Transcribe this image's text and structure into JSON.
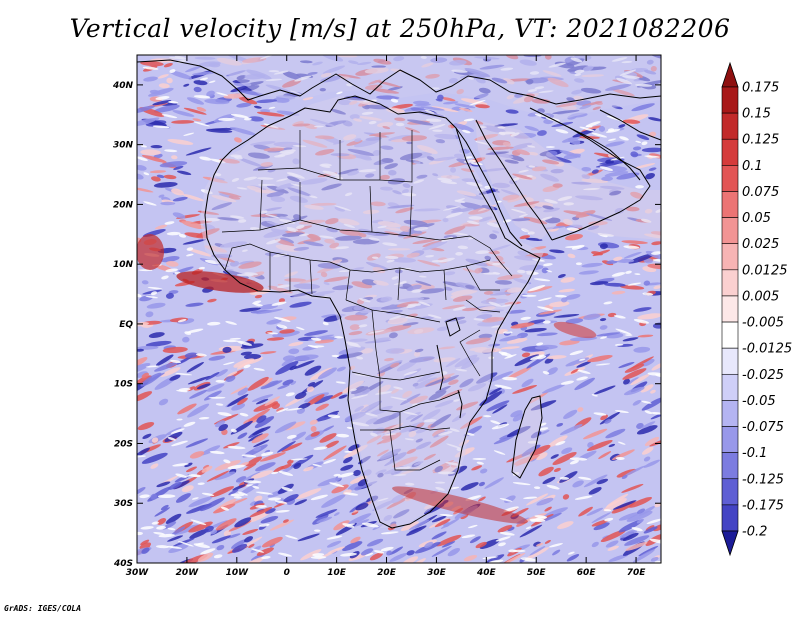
{
  "title": "Vertical velocity [m/s] at 250hPa, VT: 2021082206",
  "credit": "GrADS: IGES/COLA",
  "map": {
    "lon_range": [
      -30,
      75
    ],
    "lat_range": [
      -40,
      45
    ],
    "x_ticks": [
      {
        "value": -30,
        "label": "30W"
      },
      {
        "value": -20,
        "label": "20W"
      },
      {
        "value": -10,
        "label": "10W"
      },
      {
        "value": 0,
        "label": "0"
      },
      {
        "value": 10,
        "label": "10E"
      },
      {
        "value": 20,
        "label": "20E"
      },
      {
        "value": 30,
        "label": "30E"
      },
      {
        "value": 40,
        "label": "40E"
      },
      {
        "value": 50,
        "label": "50E"
      },
      {
        "value": 60,
        "label": "60E"
      },
      {
        "value": 70,
        "label": "70E"
      }
    ],
    "y_ticks": [
      {
        "value": 40,
        "label": "40N"
      },
      {
        "value": 30,
        "label": "30N"
      },
      {
        "value": 20,
        "label": "20N"
      },
      {
        "value": 10,
        "label": "10N"
      },
      {
        "value": 0,
        "label": "EQ"
      },
      {
        "value": -10,
        "label": "10S"
      },
      {
        "value": -20,
        "label": "20S"
      },
      {
        "value": -30,
        "label": "30S"
      },
      {
        "value": -40,
        "label": "40S"
      }
    ]
  },
  "colorbar": {
    "levels": [
      {
        "label": "0.175",
        "color": "#a81818"
      },
      {
        "label": "0.15",
        "color": "#c22a2a"
      },
      {
        "label": "0.125",
        "color": "#d53b3b"
      },
      {
        "label": "0.1",
        "color": "#e25555"
      },
      {
        "label": "0.075",
        "color": "#ec7474"
      },
      {
        "label": "0.05",
        "color": "#f29494"
      },
      {
        "label": "0.025",
        "color": "#f7b4b4"
      },
      {
        "label": "0.0125",
        "color": "#fbd0d0"
      },
      {
        "label": "0.005",
        "color": "#fde8e8"
      },
      {
        "label": "-0.005",
        "color": "#ffffff"
      },
      {
        "label": "-0.0125",
        "color": "#e8e8fc"
      },
      {
        "label": "-0.025",
        "color": "#cfcff8"
      },
      {
        "label": "-0.05",
        "color": "#b4b4f2"
      },
      {
        "label": "-0.075",
        "color": "#9898ea"
      },
      {
        "label": "-0.1",
        "color": "#7c7ce0"
      },
      {
        "label": "-0.125",
        "color": "#5f5fd4"
      },
      {
        "label": "-0.175",
        "color": "#4444c4"
      },
      {
        "label": "-0.2",
        "color": "#2c2cae"
      }
    ],
    "top_color": "#8e1010",
    "bottom_color": "#1c1c98"
  }
}
